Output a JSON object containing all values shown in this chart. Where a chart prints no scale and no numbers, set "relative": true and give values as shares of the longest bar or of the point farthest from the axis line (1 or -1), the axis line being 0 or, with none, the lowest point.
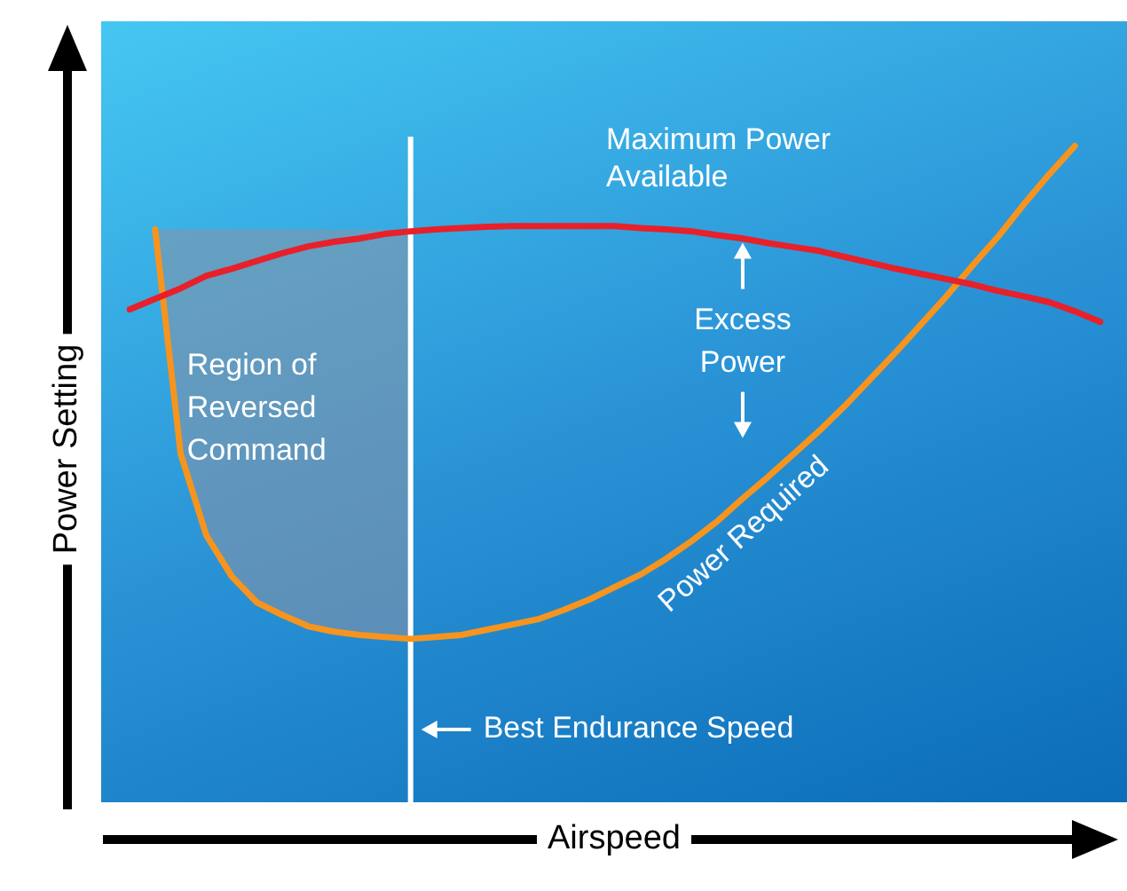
{
  "chart_data": {
    "type": "line",
    "relative": true,
    "xlabel": "Airspeed",
    "ylabel": "Power Setting",
    "legend": false,
    "marker": "none",
    "line_style": "solid",
    "categories": [
      null,
      null,
      null,
      null,
      null,
      null,
      null,
      null,
      null,
      null,
      null,
      null,
      null,
      null,
      null,
      null,
      null,
      null,
      null,
      null,
      null,
      null,
      null,
      null,
      null,
      null,
      null,
      null,
      null,
      null,
      null,
      null,
      null,
      null,
      null,
      null,
      null,
      null,
      null
    ],
    "series": [
      {
        "name": "Maximum Power Available",
        "color": "#e8202a",
        "values": [
          0.751,
          0.767,
          0.783,
          0.802,
          0.813,
          0.825,
          0.837,
          0.847,
          0.854,
          0.859,
          0.866,
          0.87,
          0.873,
          0.875,
          0.877,
          0.878,
          0.878,
          0.878,
          0.878,
          0.878,
          0.875,
          0.873,
          0.87,
          0.864,
          0.859,
          0.852,
          0.846,
          0.84,
          0.831,
          0.822,
          0.813,
          0.805,
          0.797,
          0.789,
          0.779,
          0.771,
          0.762,
          0.748,
          0.732
        ]
      },
      {
        "name": "Power Required",
        "color": "#f7941d",
        "values": [
          null,
          0.873,
          0.531,
          0.407,
          0.344,
          0.304,
          0.285,
          0.268,
          0.26,
          0.255,
          0.252,
          0.249,
          0.252,
          0.255,
          0.263,
          0.271,
          0.279,
          0.293,
          0.309,
          0.328,
          0.347,
          0.371,
          0.398,
          0.428,
          0.463,
          0.496,
          0.531,
          0.566,
          0.604,
          0.645,
          0.686,
          0.729,
          0.772,
          0.818,
          0.862,
          0.911,
          0.957,
          1.0,
          null
        ]
      }
    ],
    "annotations": [
      "Region of Reversed Command",
      "Excess Power",
      "Best Endurance Speed"
    ]
  }
}
